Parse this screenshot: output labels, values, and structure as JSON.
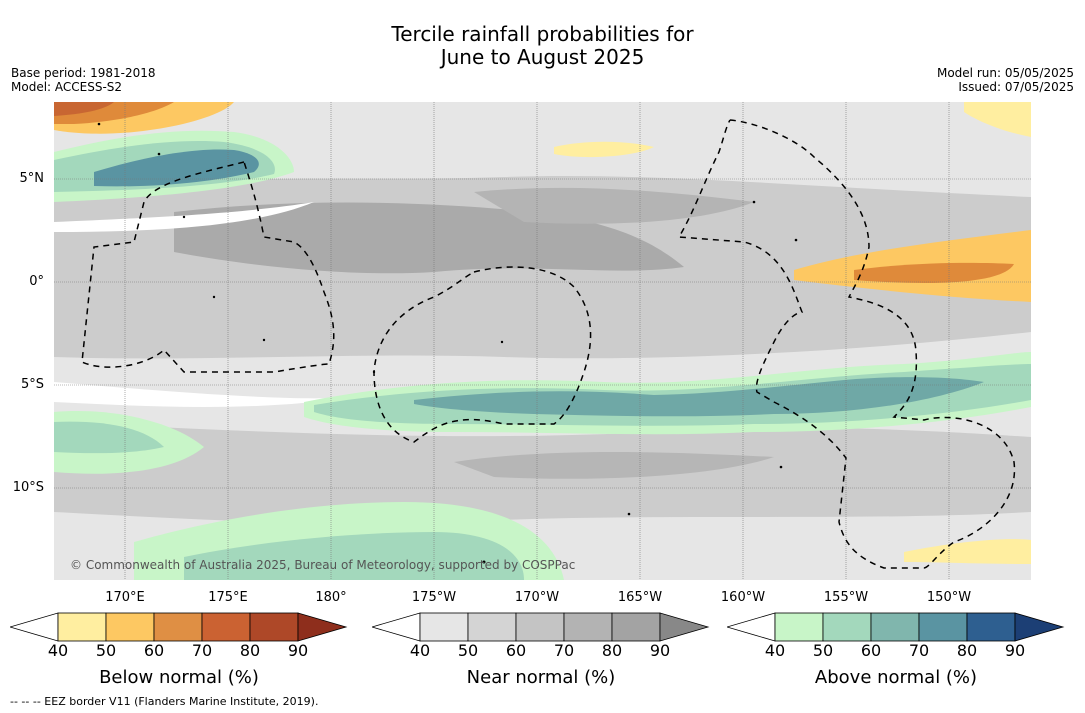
{
  "title": {
    "line1": "Tercile rainfall probabilities for",
    "line2": "June to August 2025"
  },
  "meta_left": {
    "base_period": "Base period: 1981-2018",
    "model": "Model: ACCESS-S2"
  },
  "meta_right": {
    "model_run": "Model run: 05/05/2025",
    "issued": "Issued: 07/05/2025"
  },
  "map": {
    "lat_labels": [
      "5°N",
      "0°",
      "5°S",
      "10°S"
    ],
    "lon_labels": [
      "170°E",
      "175°E",
      "180°",
      "175°W",
      "170°W",
      "165°W",
      "160°W",
      "155°W",
      "150°W"
    ],
    "copyright": "© Commonwealth of Australia 2025, Bureau of Meteorology, supported by COSPPac",
    "colors": {
      "ocean_gray_light": "#e6e6e6",
      "ocean_gray_mid": "#cccccc",
      "ocean_gray_dark": "#aaaaaa",
      "green_light": "#c8f5c8",
      "green_mid": "#9ed6b8",
      "teal": "#6fa8a6",
      "blue": "#3f7696",
      "yellow_light": "#ffeea0",
      "orange": "#fdc862",
      "orange_dark": "#df8a3a",
      "red": "#c86632"
    }
  },
  "colorbars": [
    {
      "title": "Below normal (%)",
      "ticks": [
        "40",
        "50",
        "60",
        "70",
        "80",
        "90"
      ],
      "colors": [
        "#ffffff",
        "#ffeea0",
        "#fdc862",
        "#df8f44",
        "#cb6232",
        "#ae4828",
        "#8e2e1c"
      ]
    },
    {
      "title": "Near normal (%)",
      "ticks": [
        "40",
        "50",
        "60",
        "70",
        "80",
        "90"
      ],
      "colors": [
        "#ffffff",
        "#e6e6e6",
        "#d4d4d4",
        "#c4c4c4",
        "#b3b3b3",
        "#a3a3a3",
        "#888888"
      ]
    },
    {
      "title": "Above normal (%)",
      "ticks": [
        "40",
        "50",
        "60",
        "70",
        "80",
        "90"
      ],
      "colors": [
        "#ffffff",
        "#c8f5c8",
        "#a3d8bc",
        "#80b6ad",
        "#5a94a2",
        "#2e5f90",
        "#1c3f75"
      ]
    }
  ],
  "footer": "--  --  -- EEZ border V11 (Flanders Marine Institute, 2019)."
}
